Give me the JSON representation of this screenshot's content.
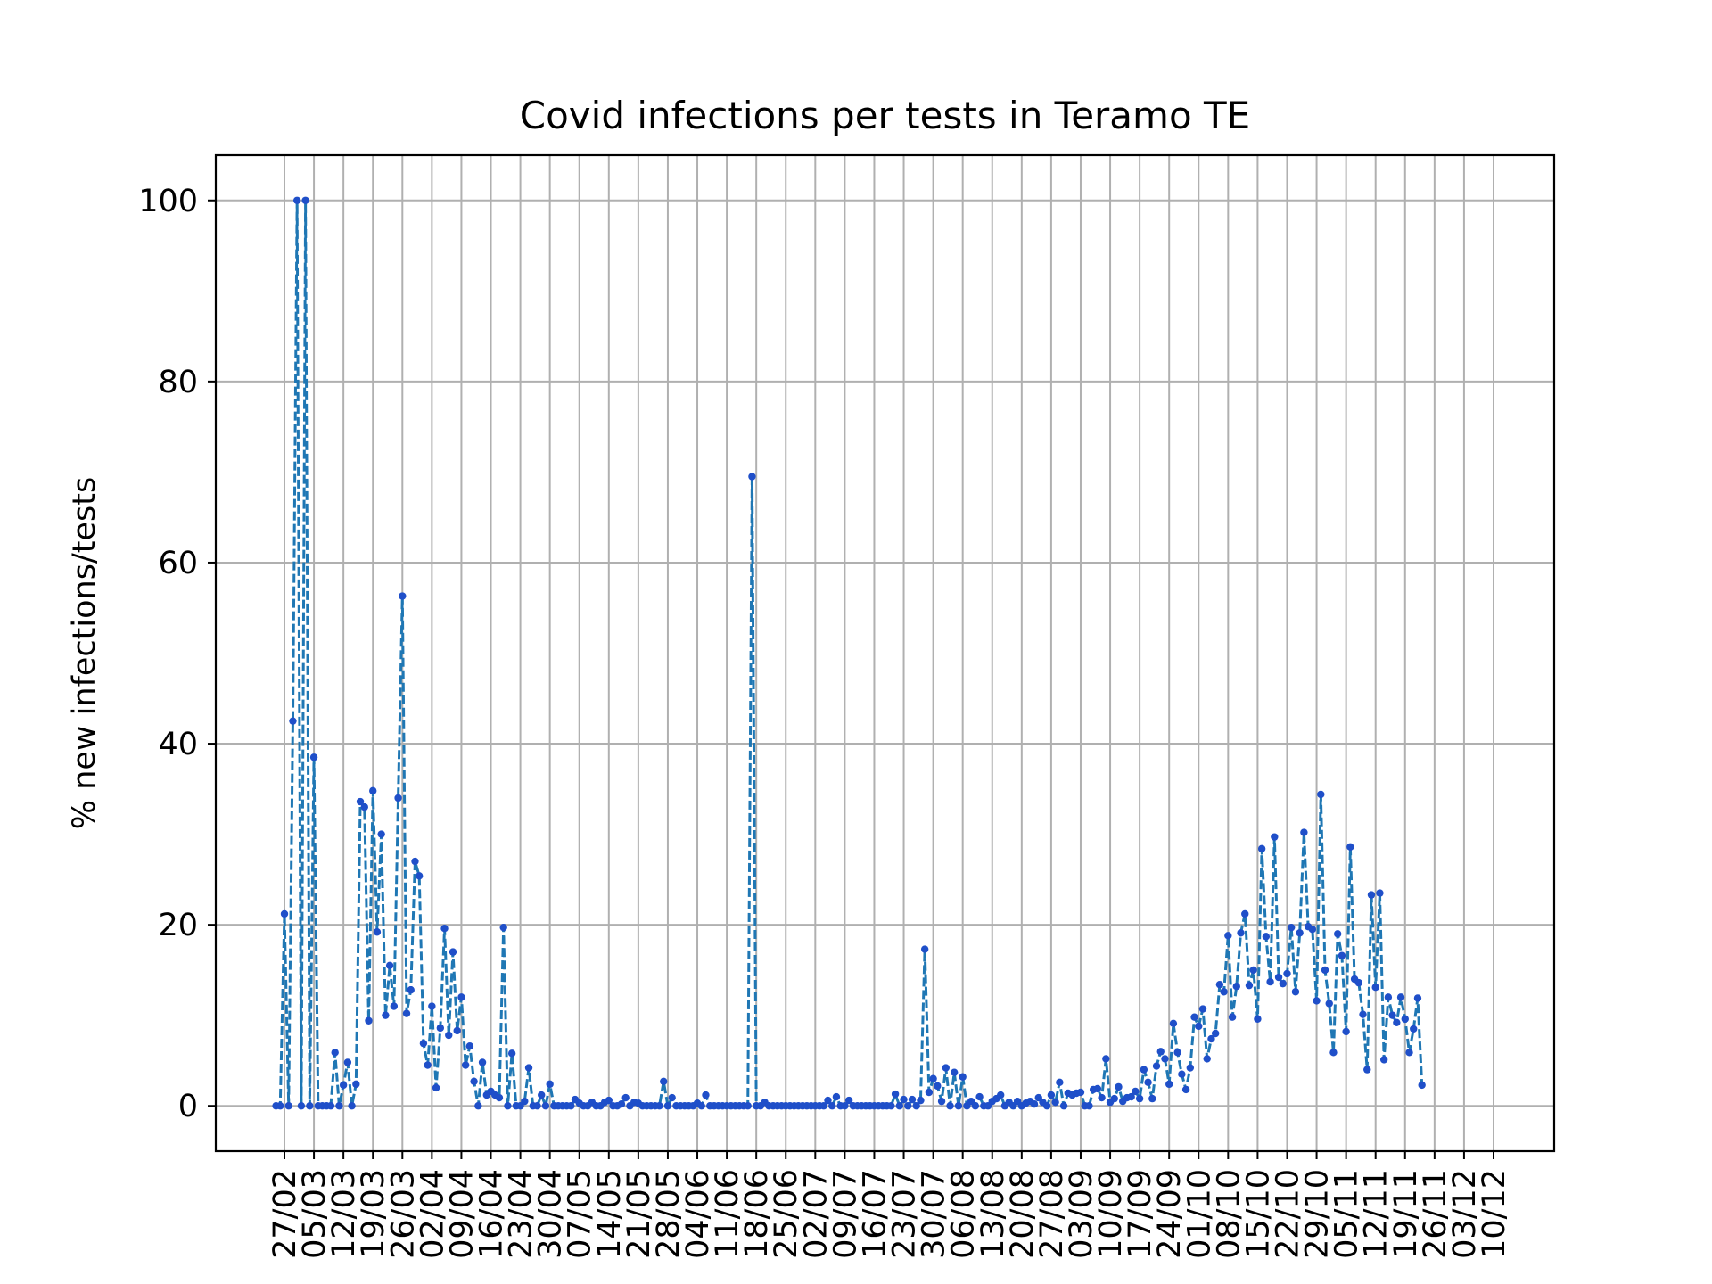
{
  "chart_data": {
    "type": "line",
    "title": "Covid infections per tests in Teramo TE",
    "xlabel": "",
    "ylabel": "% new infections/tests",
    "ylim": [
      -5,
      105
    ],
    "yticks": [
      0,
      20,
      40,
      60,
      80,
      100
    ],
    "x_tick_labels": [
      "27/02",
      "05/03",
      "12/03",
      "19/03",
      "26/03",
      "02/04",
      "09/04",
      "16/04",
      "23/04",
      "30/04",
      "07/05",
      "14/05",
      "21/05",
      "28/05",
      "04/06",
      "11/06",
      "18/06",
      "25/06",
      "02/07",
      "09/07",
      "16/07",
      "23/07",
      "30/07",
      "06/08",
      "13/08",
      "20/08",
      "27/08",
      "03/09",
      "10/09",
      "17/09",
      "24/09",
      "01/10",
      "08/10",
      "15/10",
      "22/10",
      "29/10",
      "05/11",
      "12/11",
      "19/11",
      "26/11",
      "03/12",
      "10/12"
    ],
    "grid": true,
    "line_color": "#1f77b4",
    "marker_color": "#1f4fc9",
    "line_style": "dashed",
    "series": [
      {
        "x_start": "25/02",
        "values": [
          0,
          0,
          21.2,
          0,
          42.5,
          100,
          0,
          100,
          0,
          38.5,
          0,
          0,
          0,
          0,
          5.9,
          0,
          2.3,
          4.8,
          0,
          2.4,
          33.6,
          33,
          9.4,
          34.8,
          19.2,
          30,
          10,
          15.5,
          11,
          34,
          56.3,
          10.2,
          12.8,
          27,
          25.4,
          6.9,
          4.5,
          11,
          2,
          8.6,
          19.6,
          7.8,
          17,
          8.3,
          12,
          4.5,
          6.6,
          2.7,
          0,
          4.8,
          1.2,
          1.6,
          1.2,
          0.9,
          19.7,
          0,
          5.8,
          0,
          0,
          0.5,
          4.2,
          0,
          0,
          1.2,
          0,
          2.4,
          0,
          0,
          0,
          0,
          0,
          0.7,
          0.3,
          0,
          0,
          0.4,
          0,
          0,
          0.4,
          0.6,
          0,
          0,
          0.2,
          0.9,
          0,
          0.4,
          0.3,
          0,
          0,
          0,
          0,
          0,
          2.7,
          0,
          0.9,
          0,
          0,
          0,
          0,
          0,
          0.3,
          0,
          1.2,
          0,
          0,
          0,
          0,
          0,
          0,
          0,
          0,
          0,
          0,
          69.5,
          0,
          0,
          0.4,
          0,
          0,
          0,
          0,
          0,
          0,
          0,
          0,
          0,
          0,
          0,
          0,
          0,
          0,
          0.6,
          0,
          1,
          0,
          0,
          0.6,
          0,
          0,
          0,
          0,
          0,
          0,
          0,
          0,
          0,
          0,
          1.3,
          0,
          0.7,
          0,
          0.7,
          0,
          0.6,
          17.3,
          1.5,
          3,
          2.2,
          0.5,
          4.2,
          0,
          3.7,
          0,
          3.2,
          0,
          0.5,
          0,
          1,
          0,
          0,
          0.5,
          0.8,
          1.2,
          0,
          0.4,
          0,
          0.5,
          0,
          0.3,
          0.5,
          0.2,
          0.9,
          0.4,
          0,
          1.2,
          0.4,
          2.6,
          0,
          1.4,
          1.2,
          1.4,
          1.5,
          0,
          0,
          1.8,
          1.9,
          0.9,
          5.2,
          0.4,
          0.8,
          2.1,
          0.5,
          0.9,
          1,
          1.6,
          0.8,
          4,
          2.6,
          0.8,
          4.4,
          6,
          5.2,
          2.4,
          9.1,
          5.9,
          3.5,
          1.8,
          4.2,
          9.8,
          8.8,
          10.7,
          5.2,
          7.4,
          8,
          13.4,
          12.6,
          18.8,
          9.8,
          13.2,
          19.1,
          21.2,
          13.3,
          15,
          9.6,
          28.4,
          18.7,
          13.7,
          29.7,
          14.2,
          13.5,
          14.6,
          19.7,
          12.6,
          19.1,
          30.2,
          19.8,
          19.5,
          11.6,
          34.4,
          15,
          11.3,
          5.9,
          19,
          16.6,
          8.2,
          28.6,
          14,
          13.6,
          10.1,
          4,
          23.3,
          13.1,
          23.5,
          5.1,
          12,
          10,
          9.2,
          12,
          9.6,
          5.9,
          8.5,
          11.9,
          2.3
        ]
      }
    ]
  }
}
